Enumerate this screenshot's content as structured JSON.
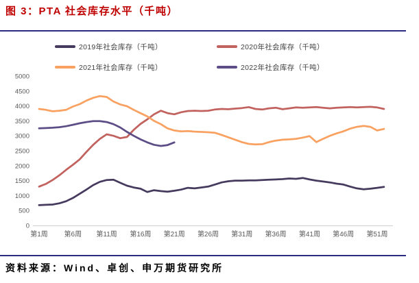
{
  "header": {
    "title": "图 3：PTA 社会库存水平（千吨）"
  },
  "footer": {
    "source": "资料来源：Wind、卓创、申万期货研究所"
  },
  "theme": {
    "background": "#ffffff",
    "title_color": "#c00000",
    "divider_color": "#2b2b80",
    "axis_line_color": "#d0d0d0",
    "tick_label_color": "#595959",
    "legend_text_color": "#404040"
  },
  "chart_data": {
    "type": "line",
    "title": "PTA 社会库存水平（千吨）",
    "xlabel": "",
    "ylabel": "",
    "x_unit": "周",
    "x_tick_labels": [
      "第1周",
      "第6周",
      "第11周",
      "第16周",
      "第21周",
      "第26周",
      "第31周",
      "第36周",
      "第41周",
      "第46周",
      "第51周"
    ],
    "ylim": [
      0,
      5000
    ],
    "ytick_step": 500,
    "yticks": [
      0,
      500,
      1000,
      1500,
      2000,
      2500,
      3000,
      3500,
      4000,
      4500,
      5000
    ],
    "grid": false,
    "legend_position": "top",
    "series": [
      {
        "year": "2019",
        "name": "2019年社会库存（千吨）",
        "color": "#463a5e",
        "start_week": 1,
        "values": [
          680,
          690,
          700,
          740,
          810,
          920,
          1060,
          1200,
          1350,
          1460,
          1520,
          1530,
          1430,
          1330,
          1270,
          1230,
          1120,
          1180,
          1150,
          1130,
          1160,
          1200,
          1260,
          1240,
          1270,
          1300,
          1370,
          1440,
          1480,
          1500,
          1500,
          1510,
          1510,
          1520,
          1530,
          1540,
          1550,
          1570,
          1560,
          1590,
          1540,
          1500,
          1470,
          1440,
          1400,
          1370,
          1300,
          1240,
          1210,
          1230,
          1260,
          1290
        ]
      },
      {
        "year": "2020",
        "name": "2020年社会库存（千吨）",
        "color": "#c2625e",
        "start_week": 1,
        "values": [
          1300,
          1390,
          1520,
          1680,
          1860,
          2030,
          2210,
          2460,
          2700,
          2900,
          3050,
          3000,
          2920,
          2960,
          3200,
          3400,
          3550,
          3720,
          3840,
          3760,
          3720,
          3790,
          3830,
          3840,
          3830,
          3840,
          3880,
          3900,
          3890,
          3910,
          3930,
          3960,
          3900,
          3880,
          3920,
          3940,
          3890,
          3920,
          3950,
          3940,
          3950,
          3960,
          3940,
          3920,
          3940,
          3950,
          3960,
          3950,
          3960,
          3970,
          3950,
          3900
        ]
      },
      {
        "year": "2021",
        "name": "2021年社会库存（千吨）",
        "color": "#f9a161",
        "start_week": 1,
        "values": [
          3900,
          3870,
          3820,
          3840,
          3870,
          3980,
          4060,
          4180,
          4270,
          4330,
          4300,
          4150,
          4050,
          3990,
          3870,
          3760,
          3650,
          3500,
          3390,
          3250,
          3180,
          3150,
          3160,
          3140,
          3130,
          3120,
          3100,
          3030,
          2950,
          2870,
          2790,
          2730,
          2710,
          2720,
          2790,
          2840,
          2870,
          2880,
          2900,
          2940,
          2990,
          2790,
          2900,
          3000,
          3080,
          3150,
          3240,
          3300,
          3330,
          3300,
          3180,
          3230
        ]
      },
      {
        "year": "2022",
        "name": "2022年社会库存（千吨）",
        "color": "#5d4d86",
        "start_week": 1,
        "values": [
          3250,
          3260,
          3270,
          3290,
          3320,
          3370,
          3420,
          3460,
          3490,
          3490,
          3460,
          3390,
          3280,
          3130,
          3000,
          2880,
          2780,
          2700,
          2660,
          2690,
          2780
        ]
      }
    ]
  }
}
